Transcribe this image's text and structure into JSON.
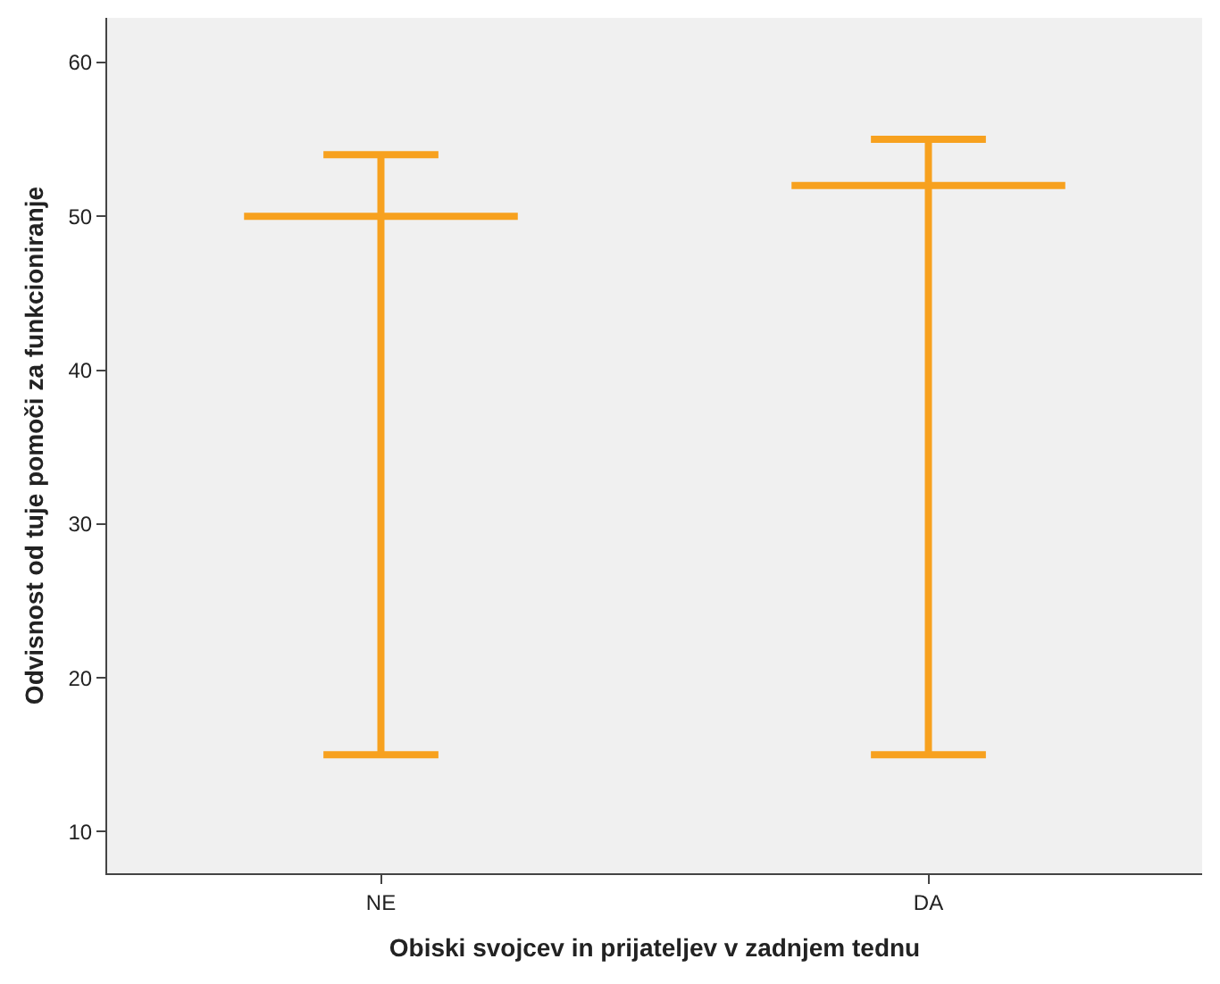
{
  "chart_data": {
    "type": "box",
    "xlabel": "Obiski svojcev in prijateljev v zadnjem tednu",
    "ylabel": "Odvisnost od tuje pomoči za funkcioniranje",
    "categories": [
      "NE",
      "DA"
    ],
    "series": [
      {
        "color": "#f7a11f",
        "boxes": [
          {
            "low": 15,
            "q1": 50,
            "median": 50,
            "q3": 50,
            "high": 54
          },
          {
            "low": 15,
            "q1": 52,
            "median": 52,
            "q3": 52,
            "high": 55
          }
        ]
      }
    ],
    "ylim": [
      7.3,
      62.9
    ],
    "yticks": [
      10,
      20,
      30,
      40,
      50,
      60
    ]
  }
}
